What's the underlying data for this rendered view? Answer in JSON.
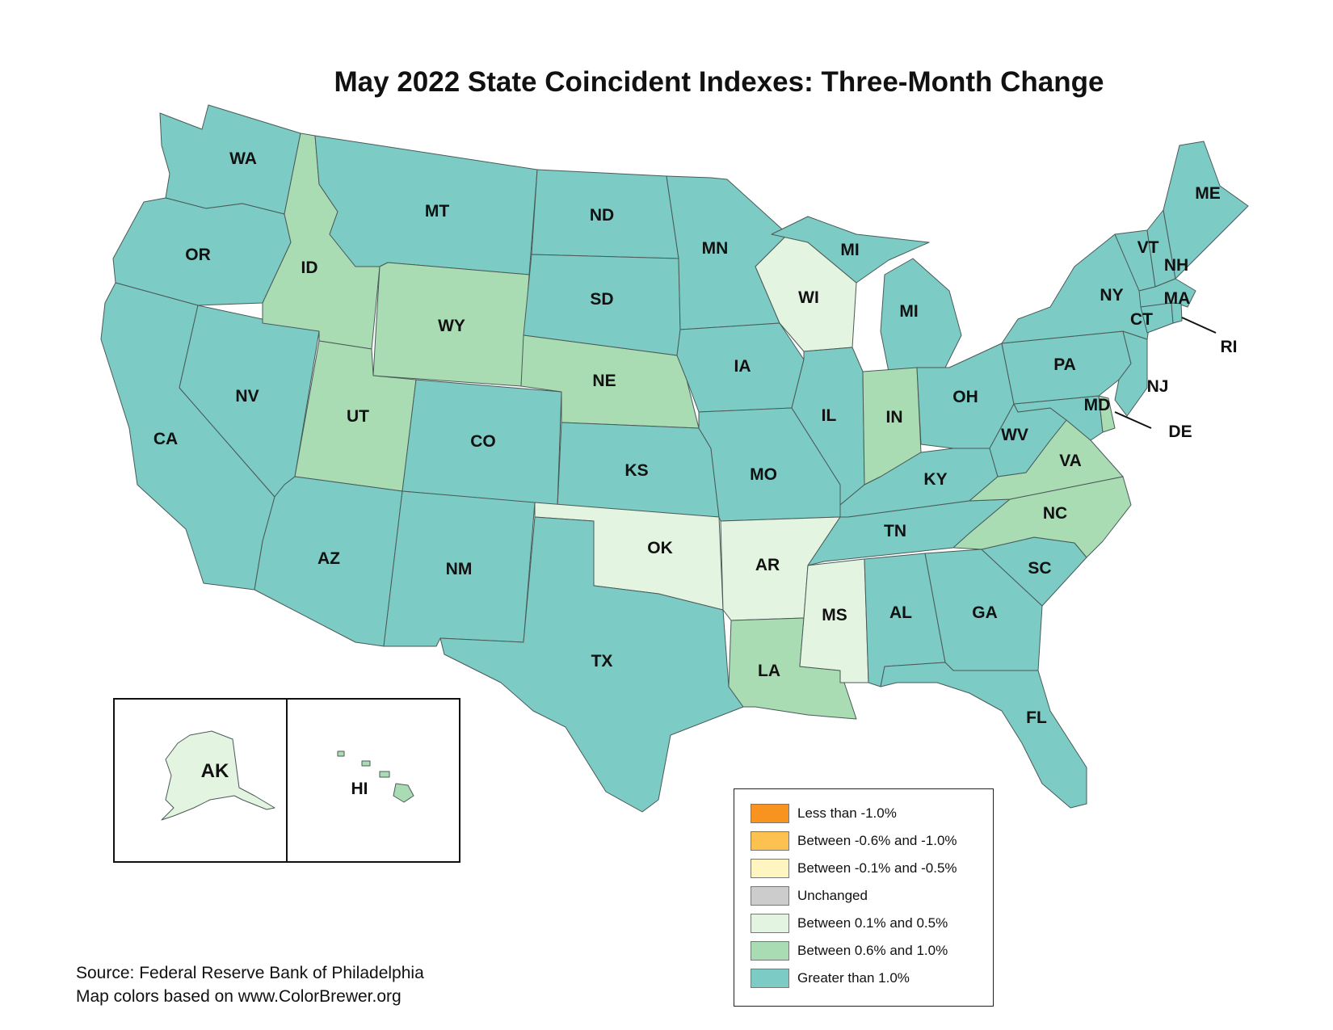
{
  "title": "May 2022 State Coincident Indexes: Three-Month Change",
  "colors": {
    "lt_neg1": "#f7931e",
    "neg06_neg10": "#fcc14e",
    "neg01_neg05": "#fef5c0",
    "unchanged": "#cccccc",
    "p01_05": "#e3f4e0",
    "p06_10": "#aadcb4",
    "gt_1": "#7ccbc4"
  },
  "legend": [
    {
      "key": "lt_neg1",
      "label": "Less than -1.0%"
    },
    {
      "key": "neg06_neg10",
      "label": "Between -0.6% and -1.0%"
    },
    {
      "key": "neg01_neg05",
      "label": "Between -0.1% and -0.5%"
    },
    {
      "key": "unchanged",
      "label": "Unchanged"
    },
    {
      "key": "p01_05",
      "label": "Between 0.1% and 0.5%"
    },
    {
      "key": "p06_10",
      "label": "Between 0.6% and 1.0%"
    },
    {
      "key": "gt_1",
      "label": "Greater than 1.0%"
    }
  ],
  "states": [
    {
      "abbr": "WA",
      "category": "gt_1"
    },
    {
      "abbr": "OR",
      "category": "gt_1"
    },
    {
      "abbr": "CA",
      "category": "gt_1"
    },
    {
      "abbr": "NV",
      "category": "gt_1"
    },
    {
      "abbr": "ID",
      "category": "p06_10"
    },
    {
      "abbr": "MT",
      "category": "gt_1"
    },
    {
      "abbr": "WY",
      "category": "p06_10"
    },
    {
      "abbr": "UT",
      "category": "p06_10"
    },
    {
      "abbr": "AZ",
      "category": "gt_1"
    },
    {
      "abbr": "CO",
      "category": "gt_1"
    },
    {
      "abbr": "NM",
      "category": "gt_1"
    },
    {
      "abbr": "ND",
      "category": "gt_1"
    },
    {
      "abbr": "SD",
      "category": "gt_1"
    },
    {
      "abbr": "NE",
      "category": "p06_10"
    },
    {
      "abbr": "KS",
      "category": "gt_1"
    },
    {
      "abbr": "OK",
      "category": "p01_05"
    },
    {
      "abbr": "TX",
      "category": "gt_1"
    },
    {
      "abbr": "MN",
      "category": "gt_1"
    },
    {
      "abbr": "IA",
      "category": "gt_1"
    },
    {
      "abbr": "MO",
      "category": "gt_1"
    },
    {
      "abbr": "AR",
      "category": "p01_05"
    },
    {
      "abbr": "LA",
      "category": "p06_10"
    },
    {
      "abbr": "WI",
      "category": "p01_05"
    },
    {
      "abbr": "IL",
      "category": "gt_1"
    },
    {
      "abbr": "MI",
      "category": "gt_1"
    },
    {
      "abbr": "IN",
      "category": "p06_10"
    },
    {
      "abbr": "OH",
      "category": "gt_1"
    },
    {
      "abbr": "KY",
      "category": "gt_1"
    },
    {
      "abbr": "TN",
      "category": "gt_1"
    },
    {
      "abbr": "MS",
      "category": "p01_05"
    },
    {
      "abbr": "AL",
      "category": "gt_1"
    },
    {
      "abbr": "GA",
      "category": "gt_1"
    },
    {
      "abbr": "FL",
      "category": "gt_1"
    },
    {
      "abbr": "SC",
      "category": "gt_1"
    },
    {
      "abbr": "NC",
      "category": "p06_10"
    },
    {
      "abbr": "VA",
      "category": "p06_10"
    },
    {
      "abbr": "WV",
      "category": "gt_1"
    },
    {
      "abbr": "MD",
      "category": "gt_1"
    },
    {
      "abbr": "DE",
      "category": "p06_10"
    },
    {
      "abbr": "NJ",
      "category": "gt_1"
    },
    {
      "abbr": "PA",
      "category": "gt_1"
    },
    {
      "abbr": "NY",
      "category": "gt_1"
    },
    {
      "abbr": "CT",
      "category": "gt_1"
    },
    {
      "abbr": "RI",
      "category": "gt_1"
    },
    {
      "abbr": "MA",
      "category": "gt_1"
    },
    {
      "abbr": "VT",
      "category": "gt_1"
    },
    {
      "abbr": "NH",
      "category": "gt_1"
    },
    {
      "abbr": "ME",
      "category": "gt_1"
    },
    {
      "abbr": "AK",
      "category": "p01_05"
    },
    {
      "abbr": "HI",
      "category": "p06_10"
    }
  ],
  "extra_labels": [
    "MI"
  ],
  "source_line1": "Source: Federal Reserve Bank of Philadelphia",
  "source_line2": "Map colors based on www.ColorBrewer.org"
}
